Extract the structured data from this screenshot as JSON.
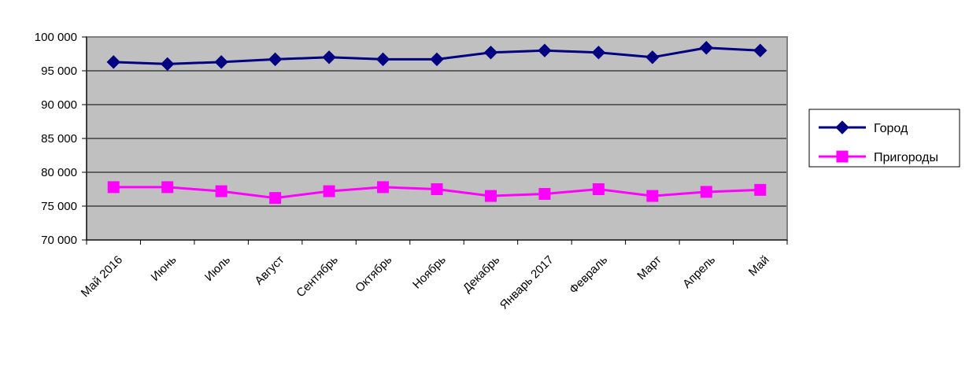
{
  "chart_data": {
    "type": "line",
    "categories": [
      "Май 2016",
      "Июнь",
      "Июль",
      "Август",
      "Сентябрь",
      "Октябрь",
      "Ноябрь",
      "Декабрь",
      "Январь 2017",
      "Февраль",
      "Март",
      "Апрель",
      "Май"
    ],
    "series": [
      {
        "name": "Город",
        "color": "#000080",
        "marker": "diamond",
        "values": [
          96300,
          96000,
          96300,
          96700,
          97000,
          96700,
          96700,
          97700,
          98000,
          97700,
          97000,
          98400,
          98000
        ]
      },
      {
        "name": "Пригороды",
        "color": "#ff00ff",
        "marker": "square",
        "values": [
          77800,
          77800,
          77200,
          76200,
          77200,
          77800,
          77500,
          76500,
          76800,
          77500,
          76500,
          77100,
          77400
        ]
      }
    ],
    "ylim": [
      70000,
      100000
    ],
    "yticks": [
      {
        "value": 70000,
        "label": "70 000"
      },
      {
        "value": 75000,
        "label": "75 000"
      },
      {
        "value": 80000,
        "label": "80 000"
      },
      {
        "value": 85000,
        "label": "85 000"
      },
      {
        "value": 90000,
        "label": "90 000"
      },
      {
        "value": 95000,
        "label": "95 000"
      },
      {
        "value": 100000,
        "label": "100 000"
      }
    ],
    "title": "",
    "xlabel": "",
    "ylabel": "",
    "grid": "horizontal",
    "legend_position": "right",
    "plot_background": "#c0c0c0"
  }
}
